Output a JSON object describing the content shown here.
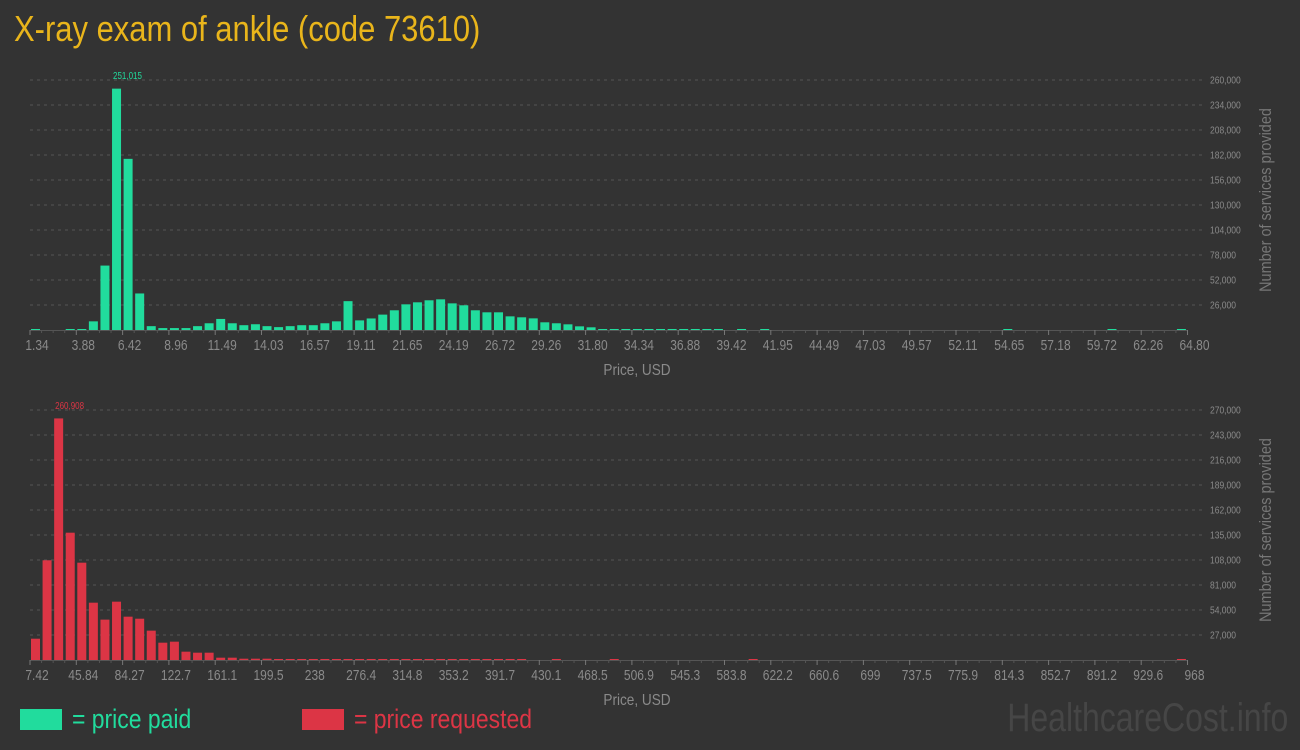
{
  "title": "X-ray exam of ankle (code 73610)",
  "watermark": "HealthcareCost.info",
  "legend": [
    {
      "label": "= price paid",
      "color": "#21dc9d"
    },
    {
      "label": "= price requested",
      "color": "#dc3545"
    }
  ],
  "colors": {
    "background": "#333333",
    "title": "#e9b51b",
    "axis_text": "#8a8a8a",
    "grid": "#555555"
  },
  "chart_data": [
    {
      "type": "bar",
      "series_color": "#21dc9d",
      "xlabel": "Price, USD",
      "ylabel": "Number of services provided",
      "ylim": [
        0,
        260000
      ],
      "grid": true,
      "yticks": [
        "26,000",
        "52,000",
        "78,000",
        "104,000",
        "130,000",
        "156,000",
        "182,000",
        "208,000",
        "234,000",
        "260,000"
      ],
      "ytick_values": [
        26000,
        52000,
        78000,
        104000,
        130000,
        156000,
        182000,
        208000,
        234000,
        260000
      ],
      "xtick_labels": [
        "1.34",
        "3.88",
        "6.42",
        "8.96",
        "11.49",
        "14.03",
        "16.57",
        "19.11",
        "21.65",
        "24.19",
        "26.72",
        "29.26",
        "31.80",
        "34.34",
        "36.88",
        "39.42",
        "41.95",
        "44.49",
        "47.03",
        "49.57",
        "52.11",
        "54.65",
        "57.18",
        "59.72",
        "62.26",
        "64.80"
      ],
      "peak_label": "251,015",
      "peak_index": 7,
      "values": [
        1000,
        0,
        0,
        1000,
        1000,
        9000,
        67000,
        251015,
        178000,
        38000,
        4000,
        2000,
        2000,
        2000,
        4000,
        7000,
        11500,
        7000,
        5000,
        6000,
        4000,
        3000,
        4000,
        5000,
        5000,
        7000,
        9000,
        30000,
        10000,
        12000,
        16000,
        20500,
        26700,
        28800,
        30900,
        31900,
        27700,
        25700,
        20500,
        18400,
        18400,
        14200,
        13200,
        12100,
        8000,
        7000,
        5900,
        3800,
        2800,
        1000,
        1000,
        1000,
        1000,
        1000,
        1000,
        1000,
        1000,
        1000,
        1000,
        1000,
        0,
        1000,
        0,
        1000,
        0,
        0,
        0,
        0,
        0,
        0,
        0,
        0,
        0,
        0,
        0,
        0,
        0,
        0,
        0,
        0,
        0,
        0,
        0,
        0,
        1000,
        0,
        0,
        0,
        0,
        0,
        0,
        0,
        0,
        1000,
        0,
        0,
        0,
        0,
        0,
        1000
      ]
    },
    {
      "type": "bar",
      "series_color": "#dc3545",
      "xlabel": "Price, USD",
      "ylabel": "Number of services provided",
      "ylim": [
        0,
        270000
      ],
      "grid": true,
      "yticks": [
        "27,000",
        "54,000",
        "81,000",
        "108,000",
        "135,000",
        "162,000",
        "189,000",
        "216,000",
        "243,000",
        "270,000"
      ],
      "ytick_values": [
        27000,
        54000,
        81000,
        108000,
        135000,
        162000,
        189000,
        216000,
        243000,
        270000
      ],
      "xtick_labels": [
        "7.42",
        "45.84",
        "84.27",
        "122.7",
        "161.1",
        "199.5",
        "238",
        "276.4",
        "314.8",
        "353.2",
        "391.7",
        "430.1",
        "468.5",
        "506.9",
        "545.3",
        "583.8",
        "622.2",
        "660.6",
        "699",
        "737.5",
        "775.9",
        "814.3",
        "852.7",
        "891.2",
        "929.6",
        "968"
      ],
      "peak_label": "260,908",
      "peak_index": 2,
      "values": [
        23000,
        107700,
        260908,
        137500,
        105100,
        61900,
        43600,
        63000,
        46800,
        44600,
        31700,
        18700,
        19800,
        9000,
        7900,
        7900,
        2500,
        2500,
        1400,
        1400,
        1400,
        800,
        800,
        800,
        800,
        800,
        800,
        800,
        800,
        800,
        600,
        600,
        600,
        600,
        600,
        600,
        600,
        600,
        600,
        600,
        600,
        600,
        600,
        0,
        0,
        600,
        0,
        0,
        0,
        0,
        600,
        0,
        0,
        0,
        0,
        0,
        0,
        0,
        0,
        0,
        0,
        0,
        600,
        0,
        0,
        0,
        0,
        0,
        0,
        0,
        0,
        0,
        0,
        0,
        0,
        0,
        0,
        0,
        0,
        0,
        0,
        0,
        0,
        0,
        0,
        0,
        0,
        0,
        0,
        0,
        0,
        0,
        0,
        0,
        0,
        0,
        0,
        0,
        0,
        600
      ]
    }
  ]
}
